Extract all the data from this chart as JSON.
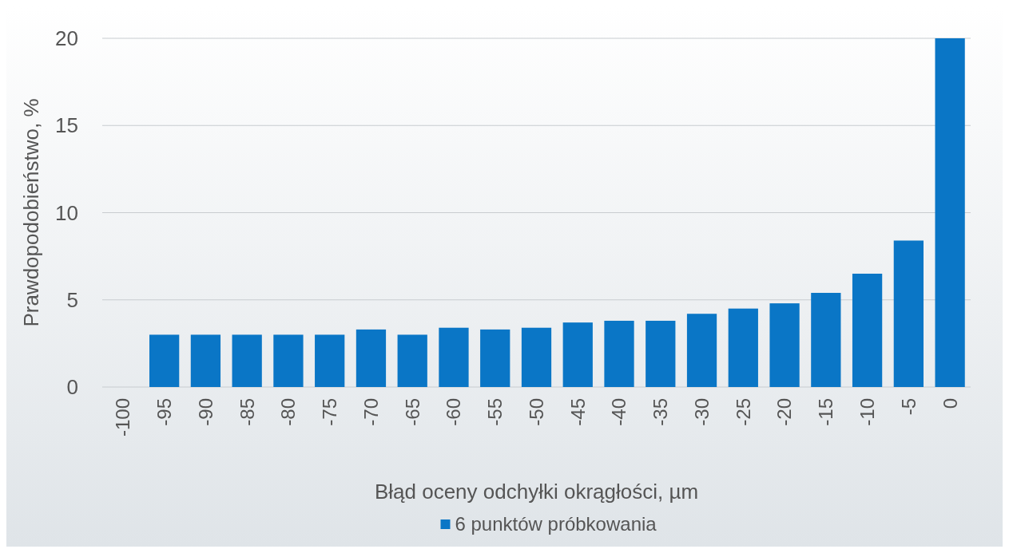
{
  "chart_data": {
    "type": "bar",
    "xlabel": "Błąd oceny odchyłki okrągłości, µm",
    "ylabel": "Prawdopodobieństwo, %",
    "categories": [
      "-100",
      "-95",
      "-90",
      "-85",
      "-80",
      "-75",
      "-70",
      "-65",
      "-60",
      "-55",
      "-50",
      "-45",
      "-40",
      "-35",
      "-30",
      "-25",
      "-20",
      "-15",
      "-10",
      "-5",
      "0"
    ],
    "series": [
      {
        "name": "6 punktów próbkowania",
        "color": "#0a76c6",
        "values": [
          null,
          3.0,
          3.0,
          3.0,
          3.0,
          3.0,
          3.3,
          3.0,
          3.4,
          3.3,
          3.4,
          3.7,
          3.8,
          3.8,
          4.2,
          4.5,
          4.8,
          5.4,
          6.5,
          8.4,
          20
        ]
      }
    ],
    "ylim": [
      0,
      20
    ],
    "yticks": [
      0,
      5,
      10,
      15,
      20
    ],
    "grid": "y",
    "legend": "bottom"
  }
}
